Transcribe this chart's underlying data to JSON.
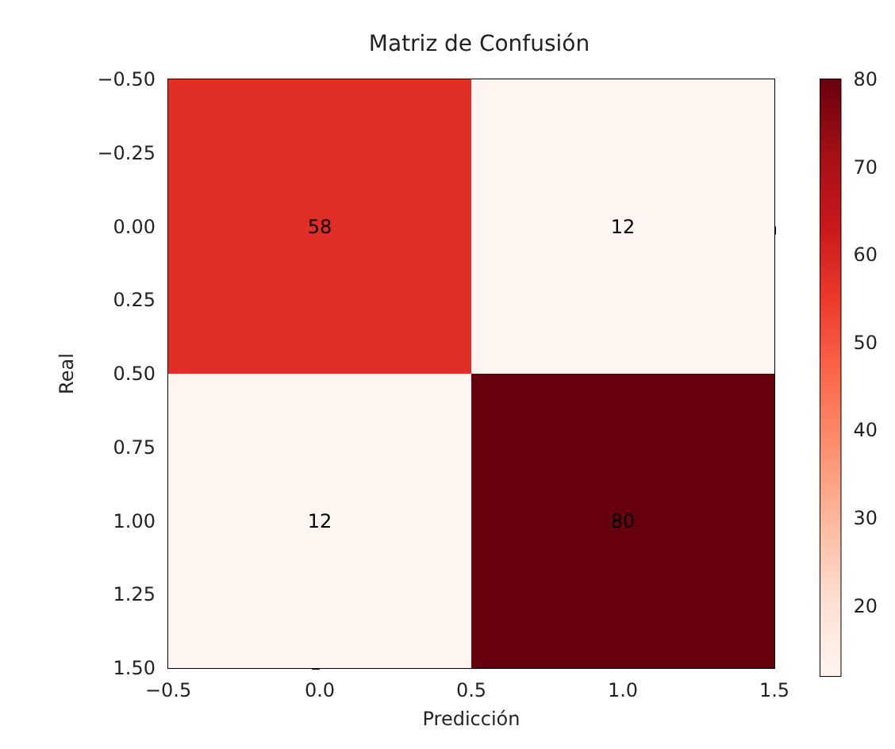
{
  "chart_data": {
    "type": "heatmap",
    "title": "Matriz de Confusión",
    "xlabel": "Predicción",
    "ylabel": "Real",
    "cells": [
      [
        58,
        12
      ],
      [
        12,
        80
      ]
    ],
    "data_labels": true,
    "clim": [
      12,
      80
    ],
    "cticks": [
      20,
      30,
      40,
      50,
      60,
      70,
      80
    ],
    "xlim": [
      -0.5,
      1.5
    ],
    "xticks": [
      {
        "value": -0.5,
        "label": "−0.5"
      },
      {
        "value": 0,
        "label": "0.0"
      },
      {
        "value": 0.5,
        "label": "0.5"
      },
      {
        "value": 1,
        "label": "1.0"
      },
      {
        "value": 1.5,
        "label": "1.5"
      }
    ],
    "ylim": [
      1.5,
      -0.5
    ],
    "yticks": [
      {
        "value": -0.5,
        "label": "−0.50"
      },
      {
        "value": -0.25,
        "label": "−0.25"
      },
      {
        "value": 0,
        "label": "0.00"
      },
      {
        "value": 0.25,
        "label": "0.25"
      },
      {
        "value": 0.5,
        "label": "0.50"
      },
      {
        "value": 0.75,
        "label": "0.75"
      },
      {
        "value": 1,
        "label": "1.00"
      },
      {
        "value": 1.25,
        "label": "1.25"
      },
      {
        "value": 1.5,
        "label": "1.50"
      }
    ],
    "grid": false
  }
}
